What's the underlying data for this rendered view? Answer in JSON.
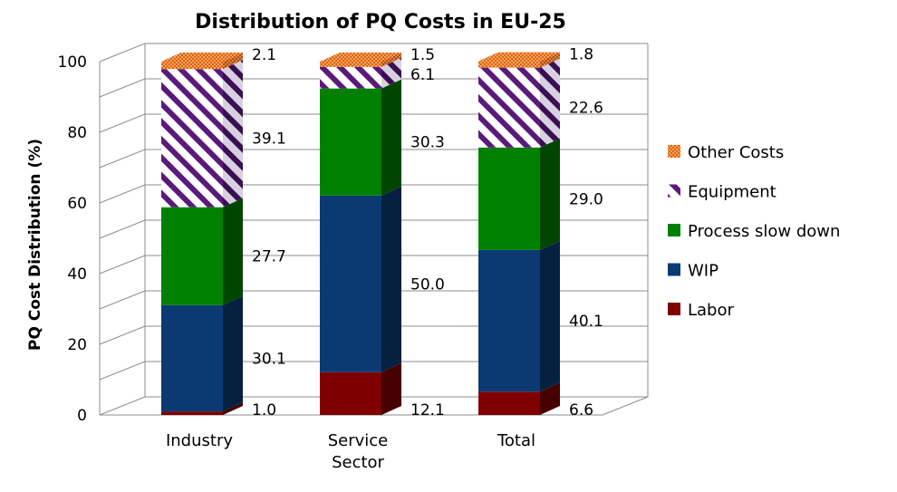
{
  "chart_data": {
    "type": "bar",
    "stacked": true,
    "three_d": true,
    "title": "Distribution of PQ Costs in EU-25",
    "xlabel": "",
    "ylabel": "PQ Cost Distribution (%)",
    "ylim": [
      0,
      100
    ],
    "yticks": [
      "0",
      "20",
      "40",
      "60",
      "80",
      "100"
    ],
    "categories": [
      "Industry",
      "Service Sector",
      "Total"
    ],
    "grid": true,
    "legend_position": "right",
    "series": [
      {
        "name": "Labor",
        "values": [
          1.0,
          12.1,
          6.6
        ],
        "labels": [
          "1.0",
          "12.1",
          "6.6"
        ],
        "color": "#7f0000",
        "pattern": "solid"
      },
      {
        "name": "WIP",
        "values": [
          30.1,
          50.0,
          40.1
        ],
        "labels": [
          "30.1",
          "50.0",
          "40.1"
        ],
        "color": "#0b3a73",
        "pattern": "solid"
      },
      {
        "name": "Process slow down",
        "values": [
          27.7,
          30.3,
          29.0
        ],
        "labels": [
          "27.7",
          "30.3",
          "29.0"
        ],
        "color": "#008000",
        "pattern": "solid"
      },
      {
        "name": "Equipment",
        "values": [
          39.1,
          6.1,
          22.6
        ],
        "labels": [
          "39.1",
          "6.1",
          "22.6"
        ],
        "color": "#5a1a7a",
        "pattern": "diagonal-stripes"
      },
      {
        "name": "Other Costs",
        "values": [
          2.1,
          1.5,
          1.8
        ],
        "labels": [
          "2.1",
          "1.5",
          "1.8"
        ],
        "color": "#f08020",
        "pattern": "dots"
      }
    ],
    "legend_order": [
      "Other Costs",
      "Equipment",
      "Process slow down",
      "WIP",
      "Labor"
    ]
  }
}
